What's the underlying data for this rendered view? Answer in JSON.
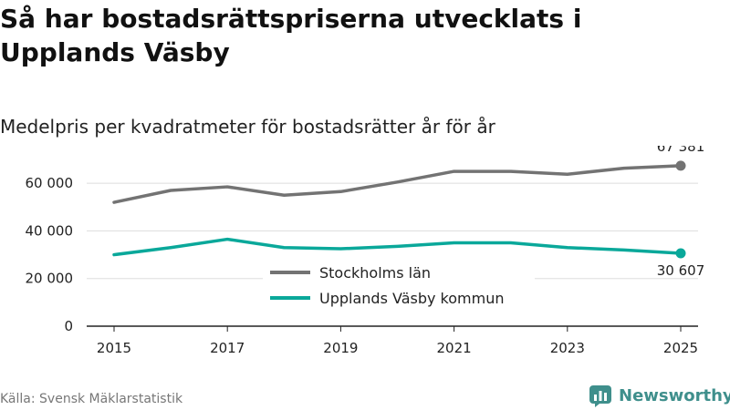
{
  "header": {
    "title": "Så har bostadsrättspriserna utvecklats i Upplands Väsby",
    "subtitle": "Medelpris per kvadratmeter för bostadsrätter år för år"
  },
  "footer": {
    "source": "Källa: Svensk Mäklarstatistik",
    "brand": "Newsworthy"
  },
  "colors": {
    "stockholm": "#737373",
    "vasby": "#0aa89a",
    "grid": "#dddddd",
    "axis": "#222222"
  },
  "chart_data": {
    "type": "line",
    "title": "Så har bostadsrättspriserna utvecklats i Upplands Väsby",
    "subtitle": "Medelpris per kvadratmeter för bostadsrätter år för år",
    "xlabel": "",
    "ylabel": "",
    "x": [
      2015,
      2016,
      2017,
      2018,
      2019,
      2020,
      2021,
      2022,
      2023,
      2024,
      2025
    ],
    "xticks": [
      "2015",
      "2017",
      "2019",
      "2021",
      "2023",
      "2025"
    ],
    "yticks": [
      0,
      20000,
      40000,
      60000
    ],
    "ytick_labels": [
      "0",
      "20 000",
      "40 000",
      "60 000"
    ],
    "ylim": [
      0,
      70000
    ],
    "grid": true,
    "legend": "center",
    "series": [
      {
        "name": "Stockholms län",
        "values": [
          52000,
          57000,
          58500,
          55000,
          56500,
          60500,
          65000,
          65000,
          63800,
          66300,
          67381
        ],
        "end_label": "67 381"
      },
      {
        "name": "Upplands Väsby kommun",
        "values": [
          30000,
          33000,
          36500,
          33000,
          32500,
          33500,
          35000,
          35000,
          33000,
          32000,
          30607
        ],
        "end_label": "30 607"
      }
    ]
  }
}
